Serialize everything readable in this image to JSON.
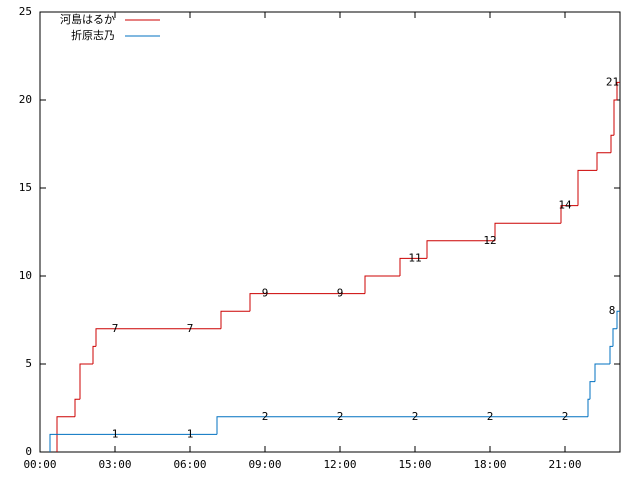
{
  "chart_data": {
    "type": "step",
    "xlim": [
      0,
      23.2
    ],
    "xticks": [
      {
        "value": 0,
        "label": "00:00"
      },
      {
        "value": 3,
        "label": "03:00"
      },
      {
        "value": 6,
        "label": "06:00"
      },
      {
        "value": 9,
        "label": "09:00"
      },
      {
        "value": 12,
        "label": "12:00"
      },
      {
        "value": 15,
        "label": "15:00"
      },
      {
        "value": 18,
        "label": "18:00"
      },
      {
        "value": 21,
        "label": "21:00"
      }
    ],
    "ylim": [
      0,
      25
    ],
    "yticks": [
      0,
      5,
      10,
      15,
      20,
      25
    ],
    "grid": false,
    "legend": "top-left",
    "series": [
      {
        "name": "河島はるか",
        "color": "#cc0000",
        "x": [
          0.68,
          1.4,
          1.6,
          2.12,
          2.24,
          7.24,
          8.4,
          13,
          14.4,
          15.48,
          18.2,
          20.84,
          21.52,
          22.28,
          22.84,
          22.96,
          23.08
        ],
        "values": [
          2,
          3,
          5,
          6,
          7,
          8,
          9,
          10,
          11,
          12,
          13,
          14,
          16,
          17,
          18,
          20,
          21
        ],
        "labels": {
          "x": [
            3,
            6,
            9,
            12,
            15,
            18,
            21,
            22.9
          ],
          "values": [
            7,
            7,
            9,
            9,
            11,
            12,
            14,
            21
          ]
        }
      },
      {
        "name": "折原志乃",
        "color": "#0070c0",
        "x": [
          0.4,
          7.08,
          21.92,
          22.0,
          22.2,
          22.8,
          22.92,
          23.08
        ],
        "values": [
          1,
          2,
          3,
          4,
          5,
          6,
          7,
          8
        ],
        "labels": {
          "x": [
            3,
            6,
            9,
            12,
            15,
            18,
            21,
            22.88
          ],
          "values": [
            1,
            1,
            2,
            2,
            2,
            2,
            2,
            8
          ]
        }
      }
    ]
  }
}
